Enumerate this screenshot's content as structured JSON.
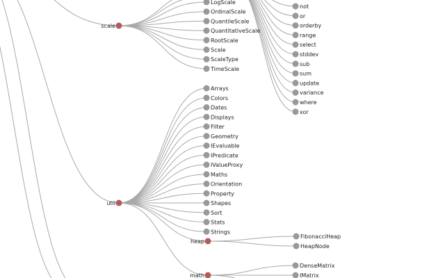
{
  "tree": {
    "scale_group": {
      "label": "scale",
      "children": [
        "LogScale",
        "OrdinalScale",
        "QuantileScale",
        "QuantitativeScale",
        "RootScale",
        "Scale",
        "ScaleType",
        "TimeScale"
      ]
    },
    "operator_group": {
      "children": [
        "not",
        "or",
        "orderby",
        "range",
        "select",
        "stddev",
        "sub",
        "sum",
        "update",
        "variance",
        "where",
        "xor"
      ]
    },
    "util_group": {
      "label": "util",
      "children": [
        "Arrays",
        "Colors",
        "Dates",
        "Displays",
        "Filter",
        "Geometry",
        "IEvaluable",
        "IPredicate",
        "IValueProxy",
        "Maths",
        "Orientation",
        "Property",
        "Shapes",
        "Sort",
        "Stats",
        "Strings"
      ]
    },
    "heap_group": {
      "label": "heap",
      "children": [
        "FibonacciHeap",
        "HeapNode"
      ]
    },
    "math_group": {
      "label": "math",
      "children": [
        "DenseMatrix",
        "IMatrix"
      ]
    }
  },
  "colors": {
    "link": "#a8a8a8",
    "leaf_node": "#999999",
    "parent_node": "#b45a5a",
    "text": "#222222"
  }
}
